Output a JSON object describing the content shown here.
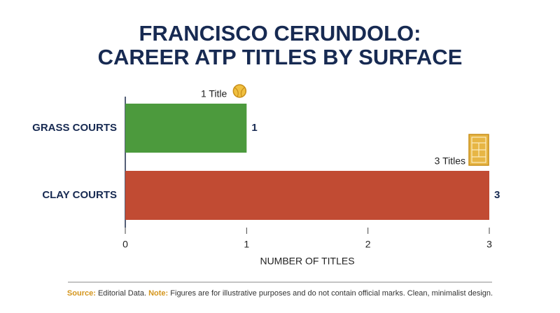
{
  "chart_data": {
    "type": "hbar",
    "title": [
      "FRANCISCO CERUNDOLO:",
      "CAREER ATP TITLES BY SURFACE"
    ],
    "categories": [
      "GRASS COURTS",
      "CLAY COURTS"
    ],
    "values": [
      1,
      3
    ],
    "colors": [
      "#4c9a3d",
      "#c14b33"
    ],
    "annotations": [
      "1 Title",
      "3 Titles"
    ],
    "xlim": [
      0,
      3
    ],
    "xticks": [
      0,
      1,
      2,
      3
    ],
    "xlabel": "NUMBER OF TITLES",
    "footer": {
      "source_label": "Source:",
      "source": "Editorial Data.",
      "note_label": "Note:",
      "note": "Figures are for illustrative purposes and do not contain official marks. Clean, minimalist design."
    }
  }
}
